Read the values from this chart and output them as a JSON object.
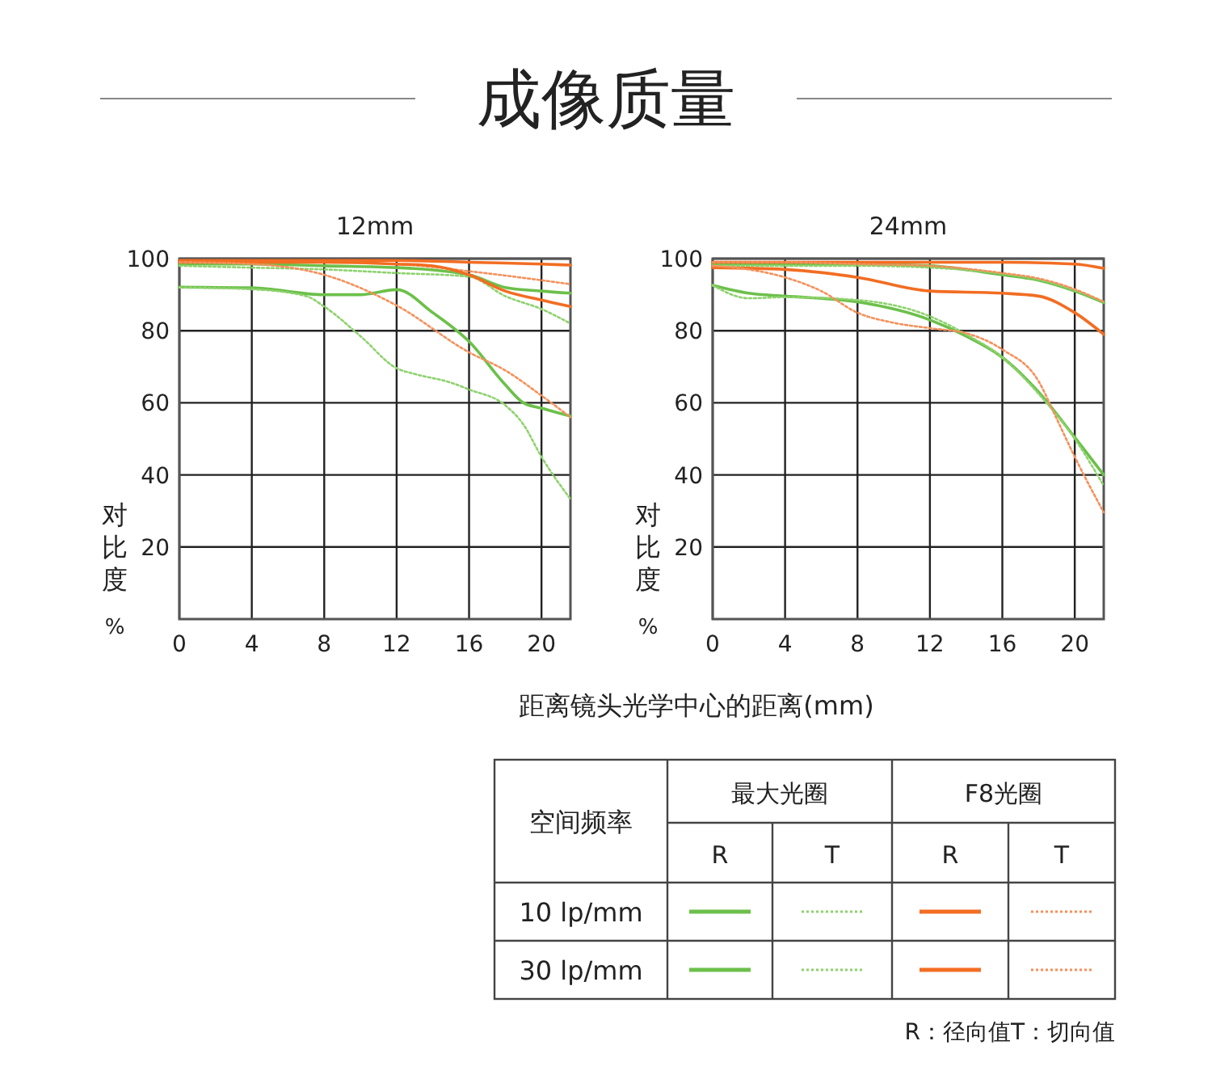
{
  "chart_data": [
    {
      "type": "line",
      "title": "12mm",
      "xlabel": "距离镜头光学中心的距离(mm)",
      "ylabel": "对比度%",
      "xlim": [
        0,
        21.6
      ],
      "xticks": [
        0,
        4,
        8,
        12,
        16,
        20
      ],
      "ylim": [
        0,
        100
      ],
      "yticks": [
        20,
        40,
        60,
        80,
        100
      ],
      "grid": true,
      "series": [
        {
          "color": "#6cc04a",
          "line_style": "solid",
          "x": [
            0,
            4,
            8,
            12,
            16,
            18,
            20,
            21.6
          ],
          "values": [
            98.5,
            98.5,
            98,
            97.5,
            95.5,
            92,
            91,
            90.4
          ]
        },
        {
          "color": "#8ed26e",
          "line_style": "dotted",
          "x": [
            0,
            4,
            8,
            12,
            16,
            18,
            20,
            21.6
          ],
          "values": [
            98,
            97.5,
            97,
            96,
            95,
            89.6,
            86,
            82
          ]
        },
        {
          "color": "#6cc04a",
          "line_style": "solid",
          "x": [
            0,
            4,
            8,
            10,
            12,
            14,
            16,
            18,
            19,
            20,
            21.6
          ],
          "values": [
            92.1,
            91.9,
            90,
            90,
            91.4,
            85,
            77,
            65,
            60,
            58.5,
            56.3
          ]
        },
        {
          "color": "#8ed26e",
          "line_style": "dotted",
          "x": [
            0,
            4,
            7,
            8,
            10,
            12,
            13,
            15,
            16,
            18,
            19,
            20,
            21.6
          ],
          "values": [
            92,
            91.5,
            89.6,
            86.7,
            78.5,
            69.6,
            68,
            65.6,
            63.7,
            59.3,
            54,
            45,
            33.3
          ]
        },
        {
          "color": "#f26d22",
          "line_style": "solid",
          "x": [
            0,
            4,
            8,
            12,
            16,
            20,
            21.6
          ],
          "values": [
            99.5,
            99.5,
            99.5,
            99.5,
            99,
            98.5,
            98.2
          ]
        },
        {
          "color": "#f5905a",
          "line_style": "dotted",
          "x": [
            0,
            4,
            8,
            12,
            16,
            20,
            21.6
          ],
          "values": [
            99,
            99,
            99,
            98.5,
            96.5,
            94,
            92.9
          ]
        },
        {
          "color": "#f26d22",
          "line_style": "solid",
          "x": [
            0,
            4,
            8,
            12,
            14,
            16,
            18,
            20,
            21.6
          ],
          "values": [
            99,
            99,
            99,
            98.5,
            98,
            95.5,
            91,
            88.5,
            86.7
          ]
        },
        {
          "color": "#f5905a",
          "line_style": "dotted",
          "x": [
            0,
            4,
            8,
            12,
            16,
            18,
            20,
            21.6
          ],
          "values": [
            99,
            98.5,
            95.5,
            87,
            74,
            69,
            62,
            56
          ]
        }
      ]
    },
    {
      "type": "line",
      "title": "24mm",
      "ylabel": "对比度%",
      "xlim": [
        0,
        21.6
      ],
      "xticks": [
        0,
        4,
        8,
        12,
        16,
        20
      ],
      "ylim": [
        0,
        100
      ],
      "yticks": [
        20,
        40,
        60,
        80,
        100
      ],
      "grid": true,
      "series": [
        {
          "color": "#6cc04a",
          "line_style": "solid",
          "x": [
            0,
            4,
            8,
            12,
            16,
            18,
            20,
            21.6
          ],
          "values": [
            98.5,
            98.5,
            98.5,
            98,
            95.5,
            94,
            91,
            87.8
          ]
        },
        {
          "color": "#8ed26e",
          "line_style": "dotted",
          "x": [
            0,
            4,
            8,
            12,
            16,
            18,
            20,
            21.6
          ],
          "values": [
            98,
            98,
            98,
            97.5,
            95.8,
            94.2,
            91.2,
            88
          ]
        },
        {
          "color": "#6cc04a",
          "line_style": "solid",
          "x": [
            0,
            2,
            4,
            8,
            12,
            14,
            16,
            18,
            20,
            21.6
          ],
          "values": [
            92.6,
            90.4,
            89.6,
            88,
            83,
            78.5,
            72.6,
            63,
            50.4,
            40
          ]
        },
        {
          "color": "#8ed26e",
          "line_style": "dotted",
          "x": [
            0,
            2,
            4,
            8,
            12,
            14,
            16,
            18,
            20,
            21.6
          ],
          "values": [
            92.6,
            89,
            89.3,
            88.5,
            84,
            79,
            72.6,
            62.5,
            50,
            37
          ]
        },
        {
          "color": "#f26d22",
          "line_style": "solid",
          "x": [
            0,
            4,
            8,
            12,
            16,
            20,
            21.6
          ],
          "values": [
            99,
            99,
            99,
            99,
            99,
            98.5,
            97.3
          ]
        },
        {
          "color": "#f5905a",
          "line_style": "dotted",
          "x": [
            0,
            4,
            8,
            12,
            16,
            18,
            20,
            21.6
          ],
          "values": [
            99,
            99,
            98.5,
            98,
            96,
            94.5,
            91.5,
            88
          ]
        },
        {
          "color": "#f26d22",
          "line_style": "solid",
          "x": [
            0,
            4,
            8,
            12,
            16,
            18,
            20,
            21.6
          ],
          "values": [
            97.5,
            97,
            94.8,
            91,
            90.4,
            89.6,
            85,
            79
          ]
        },
        {
          "color": "#f5905a",
          "line_style": "dotted",
          "x": [
            0,
            2,
            4,
            6,
            8,
            10,
            12,
            14,
            16,
            18,
            19,
            20,
            21.6
          ],
          "values": [
            98,
            97,
            94.8,
            91,
            85,
            82.2,
            80.7,
            79.3,
            74.8,
            66,
            55.6,
            45,
            29.6
          ]
        }
      ]
    },
    {
      "type": "other",
      "title": "成像质量",
      "annotations": [
        "空间频率",
        "最大光圈",
        "F8光圈",
        "R",
        "T",
        "R",
        "T",
        "10 lp/mm",
        "30 lp/mm",
        "R：径向值T：切向值"
      ]
    }
  ]
}
